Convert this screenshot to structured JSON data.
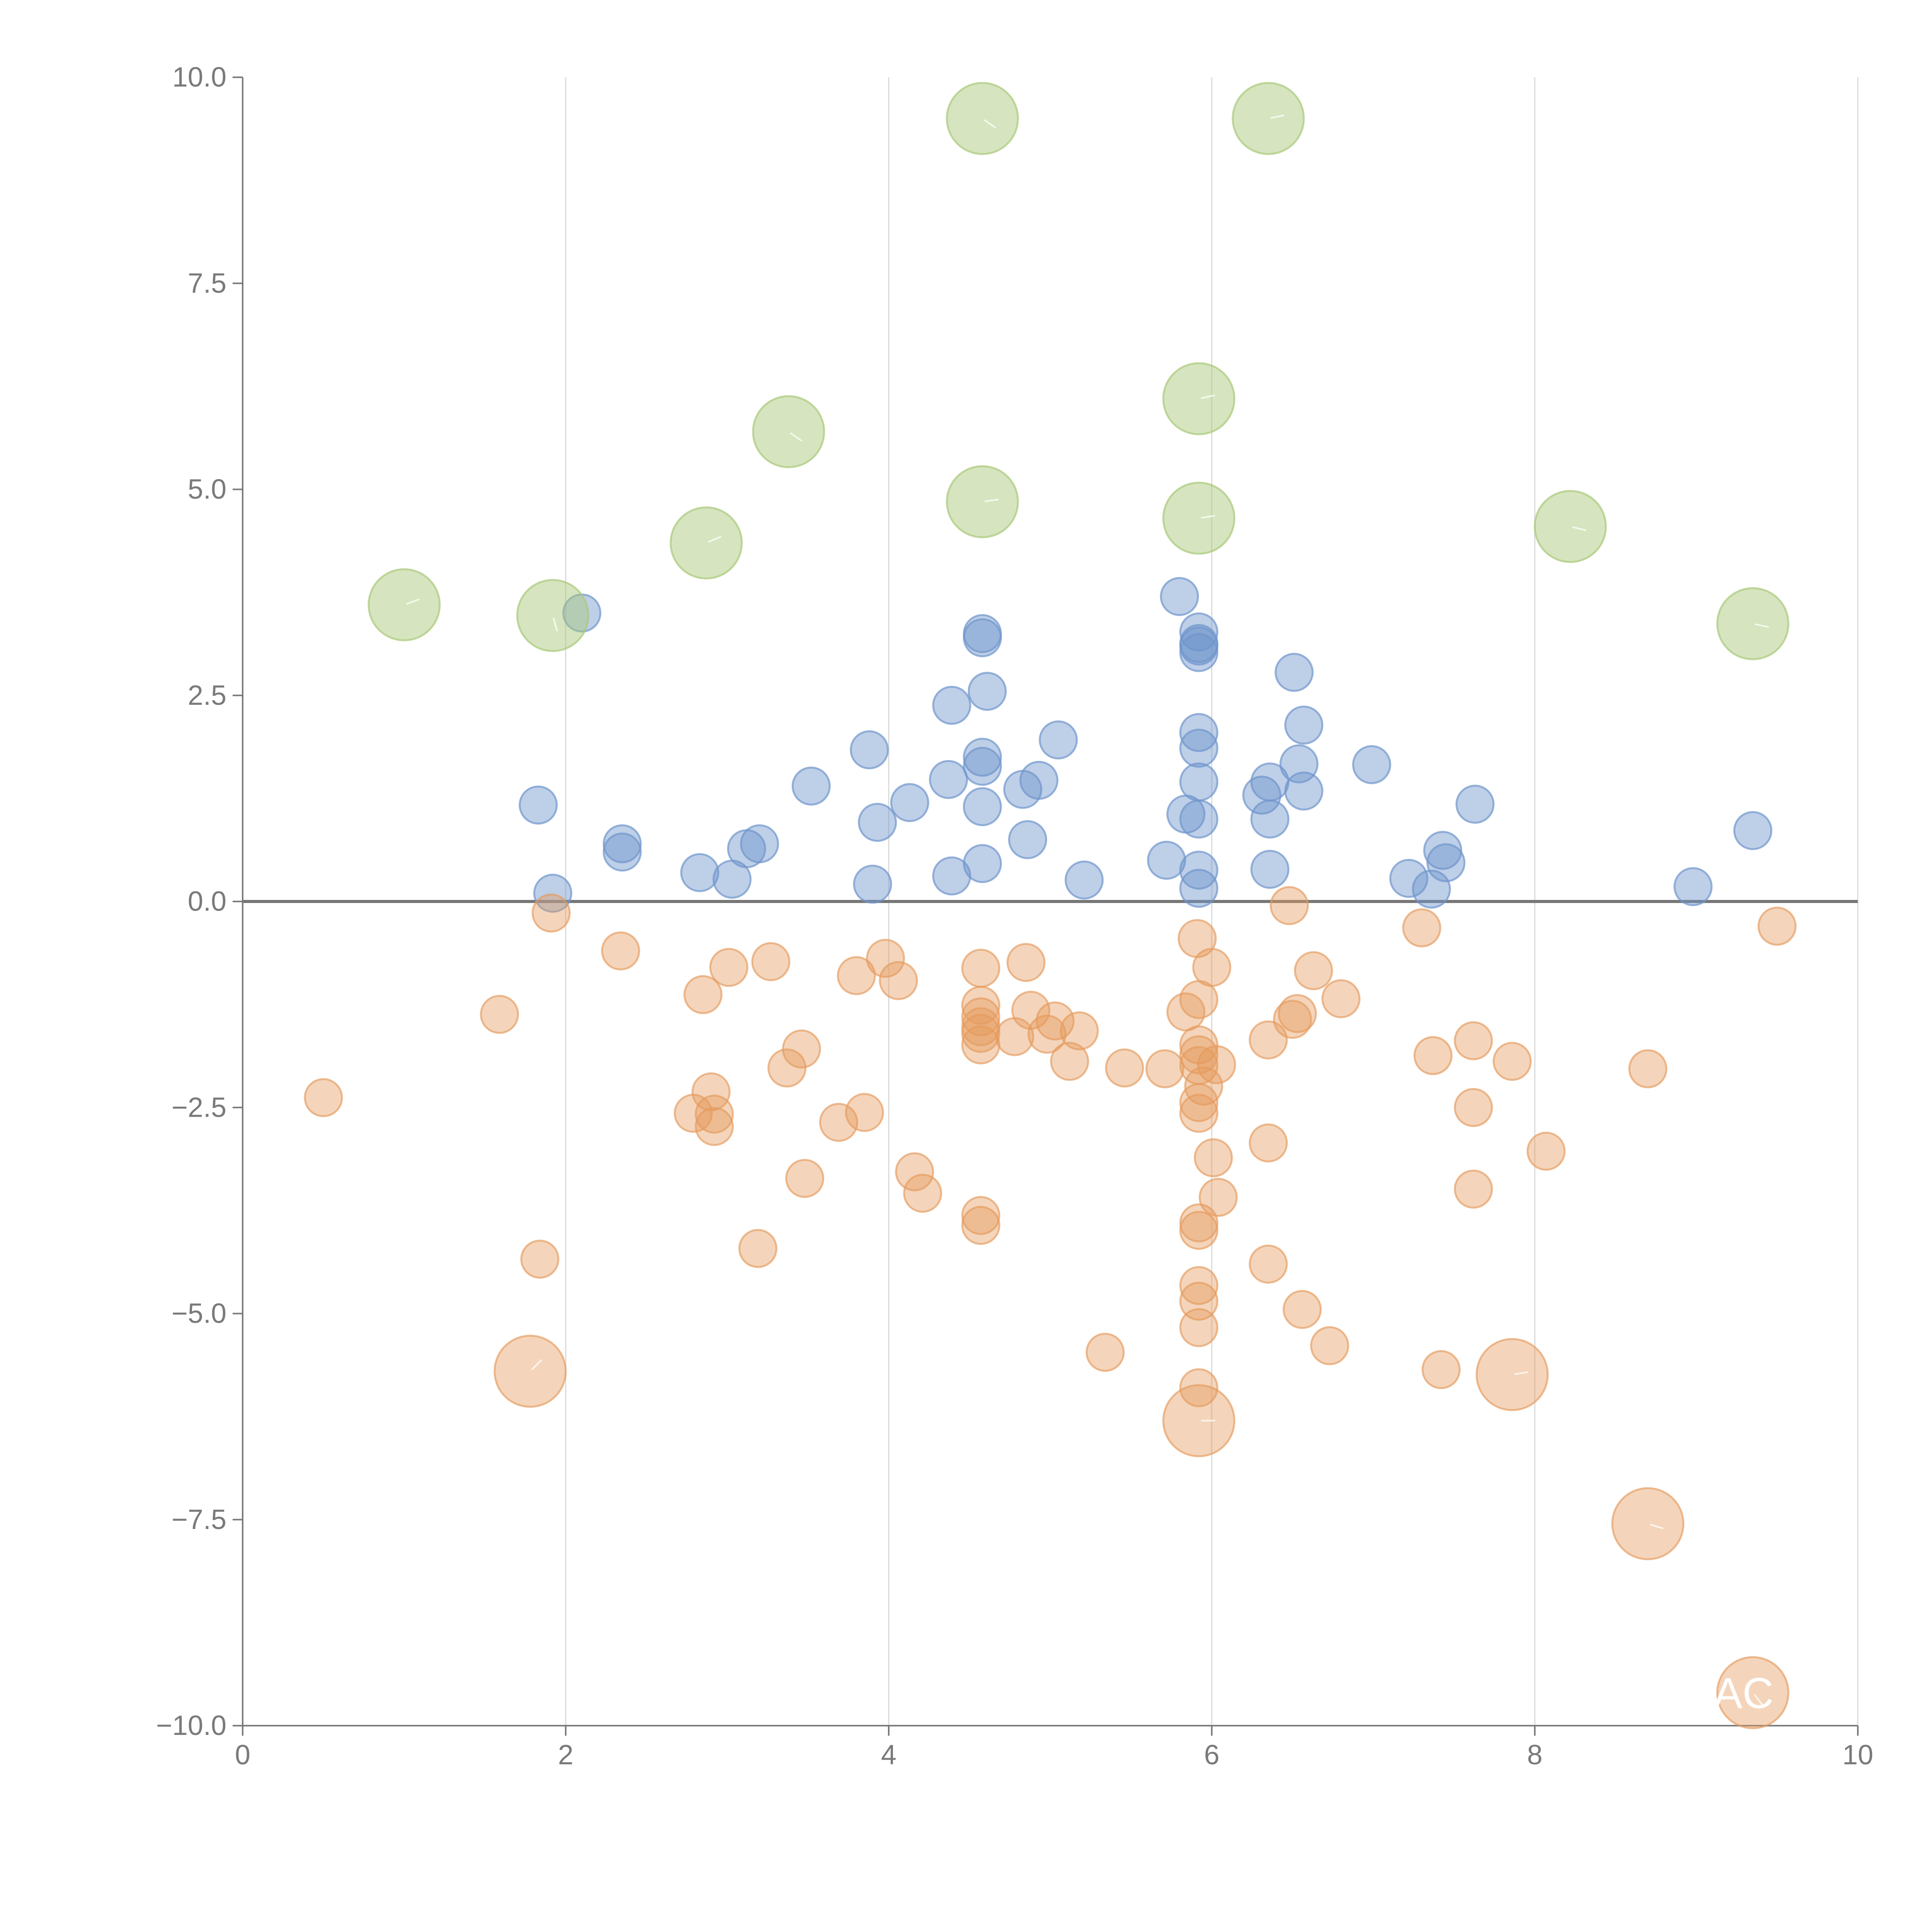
{
  "chart_data": {
    "type": "scatter",
    "title": "",
    "xlabel": "",
    "ylabel": "",
    "xlim": [
      0,
      10
    ],
    "ylim": [
      -10,
      10
    ],
    "x_ticks": [
      "0",
      "2",
      "4",
      "6",
      "8",
      "10"
    ],
    "y_ticks": [
      "−10.0",
      "−7.5",
      "−5.0",
      "−2.5",
      "0.0",
      "2.5",
      "5.0",
      "7.5",
      "10.0"
    ],
    "grid": "vertical lines at x ticks",
    "zero_line": true,
    "colors": {
      "positive_small": "#7da0d3",
      "negative_small": "#e8a46c",
      "positive_large": "#b7d18a",
      "negative_large": "#e8a46c",
      "axis": "#7a7a7a",
      "grid": "#d9d9d9"
    },
    "series": [
      {
        "group": "small-positive",
        "points": [
          [
            1.83,
            1.17
          ],
          [
            1.92,
            0.1
          ],
          [
            2.1,
            3.5
          ],
          [
            2.35,
            0.7
          ],
          [
            2.35,
            0.6
          ],
          [
            2.83,
            0.35
          ],
          [
            3.03,
            0.27
          ],
          [
            3.12,
            0.64
          ],
          [
            3.2,
            0.7
          ],
          [
            3.52,
            1.4
          ],
          [
            3.88,
            1.84
          ],
          [
            3.9,
            0.21
          ],
          [
            3.93,
            0.96
          ],
          [
            4.13,
            1.2
          ],
          [
            4.37,
            1.48
          ],
          [
            4.39,
            2.38
          ],
          [
            4.39,
            0.31
          ],
          [
            4.58,
            3.25
          ],
          [
            4.58,
            3.2
          ],
          [
            4.58,
            1.75
          ],
          [
            4.58,
            1.64
          ],
          [
            4.58,
            1.15
          ],
          [
            4.58,
            0.46
          ],
          [
            4.61,
            2.55
          ],
          [
            4.83,
            1.36
          ],
          [
            4.86,
            0.75
          ],
          [
            4.93,
            1.47
          ],
          [
            5.05,
            1.96
          ],
          [
            5.21,
            0.26
          ],
          [
            5.72,
            0.5
          ],
          [
            5.8,
            3.7
          ],
          [
            5.84,
            1.06
          ],
          [
            5.92,
            3.27
          ],
          [
            5.92,
            3.13
          ],
          [
            5.92,
            3.1
          ],
          [
            5.92,
            3.02
          ],
          [
            5.92,
            2.05
          ],
          [
            5.92,
            1.86
          ],
          [
            5.92,
            1.45
          ],
          [
            5.92,
            1.0
          ],
          [
            5.92,
            0.38
          ],
          [
            5.92,
            0.16
          ],
          [
            6.31,
            1.29
          ],
          [
            6.36,
            1.45
          ],
          [
            6.36,
            1.0
          ],
          [
            6.36,
            0.39
          ],
          [
            6.51,
            2.78
          ],
          [
            6.54,
            1.67
          ],
          [
            6.57,
            2.14
          ],
          [
            6.57,
            1.34
          ],
          [
            6.99,
            1.66
          ],
          [
            7.22,
            0.28
          ],
          [
            7.36,
            0.15
          ],
          [
            7.43,
            0.62
          ],
          [
            7.45,
            0.47
          ],
          [
            7.63,
            1.18
          ],
          [
            8.98,
            0.18
          ],
          [
            9.35,
            0.86
          ]
        ]
      },
      {
        "group": "small-negative",
        "points": [
          [
            0.5,
            -2.38
          ],
          [
            1.59,
            -1.37
          ],
          [
            1.84,
            -4.34
          ],
          [
            1.91,
            -0.14
          ],
          [
            2.34,
            -0.6
          ],
          [
            2.85,
            -1.13
          ],
          [
            2.79,
            -2.57
          ],
          [
            2.9,
            -2.31
          ],
          [
            2.92,
            -2.58
          ],
          [
            2.92,
            -2.73
          ],
          [
            3.01,
            -0.8
          ],
          [
            3.19,
            -4.21
          ],
          [
            3.27,
            -0.73
          ],
          [
            3.37,
            -2.02
          ],
          [
            3.46,
            -1.79
          ],
          [
            3.48,
            -3.36
          ],
          [
            3.69,
            -2.68
          ],
          [
            3.8,
            -0.9
          ],
          [
            3.85,
            -2.56
          ],
          [
            3.98,
            -0.69
          ],
          [
            4.06,
            -0.96
          ],
          [
            4.16,
            -3.28
          ],
          [
            4.21,
            -3.54
          ],
          [
            4.57,
            -0.81
          ],
          [
            4.57,
            -1.26
          ],
          [
            4.57,
            -1.4
          ],
          [
            4.57,
            -1.52
          ],
          [
            4.57,
            -1.6
          ],
          [
            4.57,
            -1.74
          ],
          [
            4.57,
            -3.81
          ],
          [
            4.57,
            -3.93
          ],
          [
            4.78,
            -1.64
          ],
          [
            4.85,
            -0.74
          ],
          [
            4.88,
            -1.32
          ],
          [
            4.98,
            -1.61
          ],
          [
            5.03,
            -1.45
          ],
          [
            5.12,
            -1.94
          ],
          [
            5.18,
            -1.57
          ],
          [
            5.34,
            -5.47
          ],
          [
            5.46,
            -2.02
          ],
          [
            5.71,
            -2.03
          ],
          [
            5.84,
            -1.34
          ],
          [
            5.91,
            -0.45
          ],
          [
            5.92,
            -1.19
          ],
          [
            5.92,
            -1.74
          ],
          [
            5.92,
            -1.86
          ],
          [
            5.92,
            -1.99
          ],
          [
            5.92,
            -2.44
          ],
          [
            5.92,
            -2.57
          ],
          [
            5.92,
            -3.9
          ],
          [
            5.92,
            -3.99
          ],
          [
            5.92,
            -4.66
          ],
          [
            5.92,
            -4.85
          ],
          [
            5.92,
            -5.17
          ],
          [
            5.92,
            -5.9
          ],
          [
            5.95,
            -2.24
          ],
          [
            6.0,
            -0.8
          ],
          [
            6.01,
            -3.11
          ],
          [
            6.03,
            -1.98
          ],
          [
            6.04,
            -3.59
          ],
          [
            6.35,
            -2.93
          ],
          [
            6.35,
            -1.68
          ],
          [
            6.35,
            -4.4
          ],
          [
            6.48,
            -0.05
          ],
          [
            6.5,
            -1.43
          ],
          [
            6.53,
            -1.36
          ],
          [
            6.56,
            -4.95
          ],
          [
            6.63,
            -0.84
          ],
          [
            6.73,
            -5.39
          ],
          [
            6.8,
            -1.18
          ],
          [
            7.3,
            -0.32
          ],
          [
            7.37,
            -1.87
          ],
          [
            7.42,
            -5.68
          ],
          [
            7.62,
            -1.69
          ],
          [
            7.62,
            -2.5
          ],
          [
            7.62,
            -3.49
          ],
          [
            7.86,
            -1.94
          ],
          [
            8.07,
            -3.03
          ],
          [
            8.7,
            -2.03
          ],
          [
            9.5,
            -0.3
          ]
        ]
      },
      {
        "group": "large-positive",
        "points": [
          [
            1.0,
            3.6
          ],
          [
            1.92,
            3.47
          ],
          [
            2.87,
            4.35
          ],
          [
            3.38,
            5.7
          ],
          [
            4.58,
            9.5
          ],
          [
            4.58,
            4.85
          ],
          [
            5.92,
            6.1
          ],
          [
            5.92,
            4.65
          ],
          [
            6.35,
            9.5
          ],
          [
            8.22,
            4.55
          ],
          [
            9.35,
            3.37
          ]
        ]
      },
      {
        "group": "large-negative",
        "points": [
          [
            1.78,
            -5.7
          ],
          [
            5.92,
            -6.3
          ],
          [
            7.86,
            -5.74
          ],
          [
            8.7,
            -7.55
          ],
          [
            9.35,
            -9.6
          ]
        ]
      }
    ],
    "annotations": [
      "AC"
    ]
  }
}
